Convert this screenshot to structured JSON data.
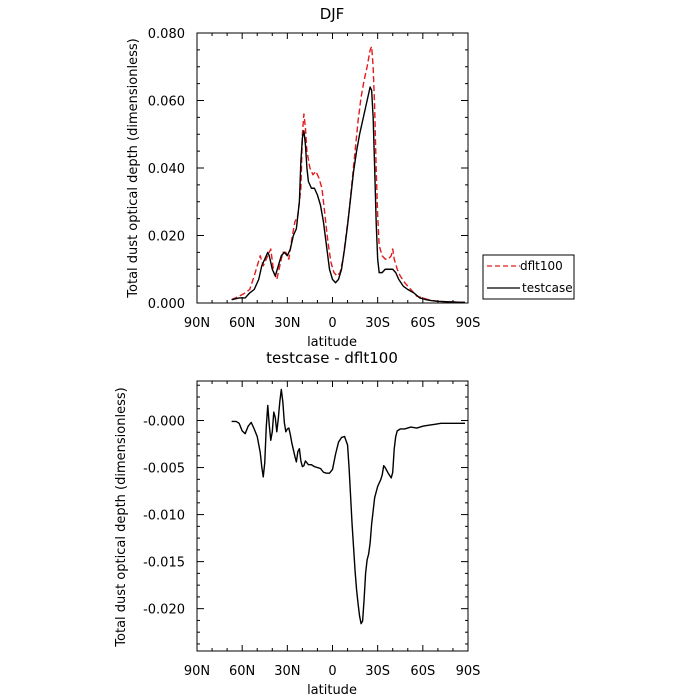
{
  "chart_data": [
    {
      "type": "line",
      "title": "DJF",
      "xlabel": "latitude",
      "ylabel": "Total dust optical depth (dimensionless)",
      "xlim": [
        90,
        -90
      ],
      "ylim": [
        0,
        0.08
      ],
      "x_ticks": [
        90,
        60,
        30,
        0,
        -30,
        -60,
        -90
      ],
      "x_tick_labels": [
        "90N",
        "60N",
        "30N",
        "0",
        "30S",
        "60S",
        "90S"
      ],
      "y_ticks": [
        0,
        0.02,
        0.04,
        0.06,
        0.08
      ],
      "y_tick_labels": [
        "0.000",
        "0.020",
        "0.040",
        "0.060",
        "0.080"
      ],
      "legend_position": "right",
      "series": [
        {
          "name": "dflt100",
          "color": "#e41a1c",
          "dash": "dashed",
          "points": [
            [
              67,
              0.001
            ],
            [
              62,
              0.002
            ],
            [
              58,
              0.003
            ],
            [
              55,
              0.004
            ],
            [
              52,
              0.008
            ],
            [
              48,
              0.014
            ],
            [
              46,
              0.011
            ],
            [
              43,
              0.014
            ],
            [
              41,
              0.016
            ],
            [
              39,
              0.009
            ],
            [
              37,
              0.007
            ],
            [
              35,
              0.011
            ],
            [
              33,
              0.015
            ],
            [
              31,
              0.015
            ],
            [
              29,
              0.013
            ],
            [
              27,
              0.019
            ],
            [
              25,
              0.024
            ],
            [
              23,
              0.026
            ],
            [
              21,
              0.034
            ],
            [
              20,
              0.05
            ],
            [
              19,
              0.056
            ],
            [
              18,
              0.052
            ],
            [
              17,
              0.045
            ],
            [
              15,
              0.04
            ],
            [
              13,
              0.038
            ],
            [
              11,
              0.039
            ],
            [
              9,
              0.037
            ],
            [
              7,
              0.034
            ],
            [
              5,
              0.026
            ],
            [
              3,
              0.018
            ],
            [
              1,
              0.012
            ],
            [
              -1,
              0.009
            ],
            [
              -3,
              0.008
            ],
            [
              -5,
              0.009
            ],
            [
              -7,
              0.013
            ],
            [
              -9,
              0.02
            ],
            [
              -11,
              0.027
            ],
            [
              -13,
              0.036
            ],
            [
              -15,
              0.045
            ],
            [
              -17,
              0.054
            ],
            [
              -19,
              0.061
            ],
            [
              -21,
              0.066
            ],
            [
              -23,
              0.07
            ],
            [
              -25,
              0.075
            ],
            [
              -26,
              0.076
            ],
            [
              -27,
              0.07
            ],
            [
              -28,
              0.058
            ],
            [
              -29,
              0.04
            ],
            [
              -30,
              0.026
            ],
            [
              -31,
              0.017
            ],
            [
              -33,
              0.014
            ],
            [
              -35,
              0.013
            ],
            [
              -37,
              0.013
            ],
            [
              -39,
              0.014
            ],
            [
              -40,
              0.016
            ],
            [
              -41,
              0.013
            ],
            [
              -43,
              0.01
            ],
            [
              -45,
              0.008
            ],
            [
              -48,
              0.006
            ],
            [
              -52,
              0.004
            ],
            [
              -56,
              0.002
            ],
            [
              -60,
              0.0015
            ],
            [
              -65,
              0.0008
            ],
            [
              -70,
              0.0005
            ],
            [
              -75,
              0.0004
            ],
            [
              -80,
              0.0003
            ],
            [
              -85,
              0.0002
            ],
            [
              -88,
              0.0002
            ]
          ]
        },
        {
          "name": "testcase",
          "color": "#000000",
          "dash": "solid",
          "points": [
            [
              67,
              0.001
            ],
            [
              62,
              0.0015
            ],
            [
              58,
              0.0015
            ],
            [
              55,
              0.003
            ],
            [
              52,
              0.004
            ],
            [
              49,
              0.007
            ],
            [
              47,
              0.011
            ],
            [
              45,
              0.013
            ],
            [
              43,
              0.015
            ],
            [
              42,
              0.014
            ],
            [
              40,
              0.01
            ],
            [
              38,
              0.008
            ],
            [
              36,
              0.011
            ],
            [
              34,
              0.014
            ],
            [
              32,
              0.015
            ],
            [
              30,
              0.014
            ],
            [
              28,
              0.016
            ],
            [
              26,
              0.02
            ],
            [
              24,
              0.022
            ],
            [
              22,
              0.03
            ],
            [
              21,
              0.042
            ],
            [
              20,
              0.049
            ],
            [
              19,
              0.051
            ],
            [
              18,
              0.047
            ],
            [
              17,
              0.04
            ],
            [
              16,
              0.036
            ],
            [
              14,
              0.034
            ],
            [
              12,
              0.034
            ],
            [
              10,
              0.032
            ],
            [
              8,
              0.029
            ],
            [
              6,
              0.024
            ],
            [
              4,
              0.017
            ],
            [
              2,
              0.01
            ],
            [
              0,
              0.007
            ],
            [
              -2,
              0.006
            ],
            [
              -4,
              0.007
            ],
            [
              -6,
              0.01
            ],
            [
              -8,
              0.016
            ],
            [
              -10,
              0.023
            ],
            [
              -12,
              0.031
            ],
            [
              -14,
              0.039
            ],
            [
              -16,
              0.045
            ],
            [
              -18,
              0.05
            ],
            [
              -20,
              0.054
            ],
            [
              -22,
              0.058
            ],
            [
              -24,
              0.062
            ],
            [
              -25,
              0.064
            ],
            [
              -26,
              0.063
            ],
            [
              -27,
              0.055
            ],
            [
              -28,
              0.04
            ],
            [
              -29,
              0.024
            ],
            [
              -30,
              0.013
            ],
            [
              -31,
              0.009
            ],
            [
              -33,
              0.009
            ],
            [
              -35,
              0.01
            ],
            [
              -37,
              0.01
            ],
            [
              -39,
              0.01
            ],
            [
              -40,
              0.01
            ],
            [
              -42,
              0.009
            ],
            [
              -44,
              0.007
            ],
            [
              -47,
              0.005
            ],
            [
              -50,
              0.004
            ],
            [
              -54,
              0.003
            ],
            [
              -58,
              0.0015
            ],
            [
              -62,
              0.001
            ],
            [
              -66,
              0.0007
            ],
            [
              -70,
              0.0005
            ],
            [
              -75,
              0.0004
            ],
            [
              -80,
              0.0003
            ],
            [
              -85,
              0.0002
            ],
            [
              -88,
              0.0002
            ]
          ]
        }
      ]
    },
    {
      "type": "line",
      "title": "testcase - dflt100",
      "xlabel": "latitude",
      "ylabel": "Total dust optical depth (dimensionless)",
      "xlim": [
        90,
        -90
      ],
      "ylim": [
        -0.0245,
        0.0042
      ],
      "x_ticks": [
        90,
        60,
        30,
        0,
        -30,
        -60,
        -90
      ],
      "x_tick_labels": [
        "90N",
        "60N",
        "30N",
        "0",
        "30S",
        "60S",
        "90S"
      ],
      "y_ticks": [
        -0.02,
        -0.015,
        -0.01,
        -0.005,
        0
      ],
      "y_tick_labels": [
        "-0.020",
        "-0.015",
        "-0.010",
        "-0.005",
        "-0.000"
      ],
      "series": [
        {
          "name": "",
          "color": "#000000",
          "dash": "solid",
          "points": [
            [
              67,
              -0.0001
            ],
            [
              64,
              -0.0001
            ],
            [
              62,
              -0.0003
            ],
            [
              60,
              -0.0011
            ],
            [
              58,
              -0.0014
            ],
            [
              56,
              -0.0006
            ],
            [
              54,
              -0.0002
            ],
            [
              52,
              -0.0009
            ],
            [
              50,
              -0.0017
            ],
            [
              48,
              -0.0034
            ],
            [
              47,
              -0.0049
            ],
            [
              46,
              -0.006
            ],
            [
              45,
              -0.0045
            ],
            [
              44,
              -0.0007
            ],
            [
              43,
              0.0016
            ],
            [
              42,
              -0.0005
            ],
            [
              41,
              -0.0021
            ],
            [
              40,
              -0.0012
            ],
            [
              39,
              0.0009
            ],
            [
              38,
              0.0003
            ],
            [
              37,
              -0.0012
            ],
            [
              36,
              0.0002
            ],
            [
              35,
              0.002
            ],
            [
              34,
              0.0033
            ],
            [
              33,
              0.002
            ],
            [
              32,
              -0.0002
            ],
            [
              31,
              -0.0012
            ],
            [
              30,
              -0.0009
            ],
            [
              29,
              -0.0008
            ],
            [
              28,
              -0.0015
            ],
            [
              27,
              -0.0024
            ],
            [
              26,
              -0.0031
            ],
            [
              25,
              -0.0038
            ],
            [
              24,
              -0.0044
            ],
            [
              23,
              -0.0033
            ],
            [
              22,
              -0.003
            ],
            [
              21,
              -0.0043
            ],
            [
              20,
              -0.0049
            ],
            [
              19,
              -0.0048
            ],
            [
              18,
              -0.0043
            ],
            [
              16,
              -0.0047
            ],
            [
              14,
              -0.0047
            ],
            [
              12,
              -0.0049
            ],
            [
              10,
              -0.005
            ],
            [
              8,
              -0.0051
            ],
            [
              6,
              -0.0055
            ],
            [
              4,
              -0.0056
            ],
            [
              2,
              -0.0056
            ],
            [
              0,
              -0.0052
            ],
            [
              -2,
              -0.0036
            ],
            [
              -4,
              -0.0023
            ],
            [
              -6,
              -0.0018
            ],
            [
              -8,
              -0.0017
            ],
            [
              -10,
              -0.0026
            ],
            [
              -11,
              -0.005
            ],
            [
              -12,
              -0.008
            ],
            [
              -13,
              -0.011
            ],
            [
              -14,
              -0.0135
            ],
            [
              -15,
              -0.016
            ],
            [
              -16,
              -0.018
            ],
            [
              -17,
              -0.0195
            ],
            [
              -18,
              -0.0208
            ],
            [
              -19,
              -0.0216
            ],
            [
              -20,
              -0.0213
            ],
            [
              -21,
              -0.019
            ],
            [
              -22,
              -0.0162
            ],
            [
              -23,
              -0.0148
            ],
            [
              -24,
              -0.0142
            ],
            [
              -25,
              -0.013
            ],
            [
              -26,
              -0.011
            ],
            [
              -28,
              -0.0082
            ],
            [
              -30,
              -0.007
            ],
            [
              -32,
              -0.0063
            ],
            [
              -33,
              -0.0058
            ],
            [
              -34,
              -0.0048
            ],
            [
              -35,
              -0.005
            ],
            [
              -37,
              -0.0056
            ],
            [
              -39,
              -0.0061
            ],
            [
              -40,
              -0.0055
            ],
            [
              -41,
              -0.003
            ],
            [
              -42,
              -0.0017
            ],
            [
              -43,
              -0.0011
            ],
            [
              -45,
              -0.0009
            ],
            [
              -48,
              -0.0009
            ],
            [
              -52,
              -0.0007
            ],
            [
              -56,
              -0.0008
            ],
            [
              -60,
              -0.0006
            ],
            [
              -64,
              -0.0005
            ],
            [
              -68,
              -0.0004
            ],
            [
              -72,
              -0.0003
            ],
            [
              -78,
              -0.0003
            ],
            [
              -84,
              -0.0003
            ],
            [
              -88,
              -0.0003
            ]
          ]
        }
      ]
    }
  ]
}
